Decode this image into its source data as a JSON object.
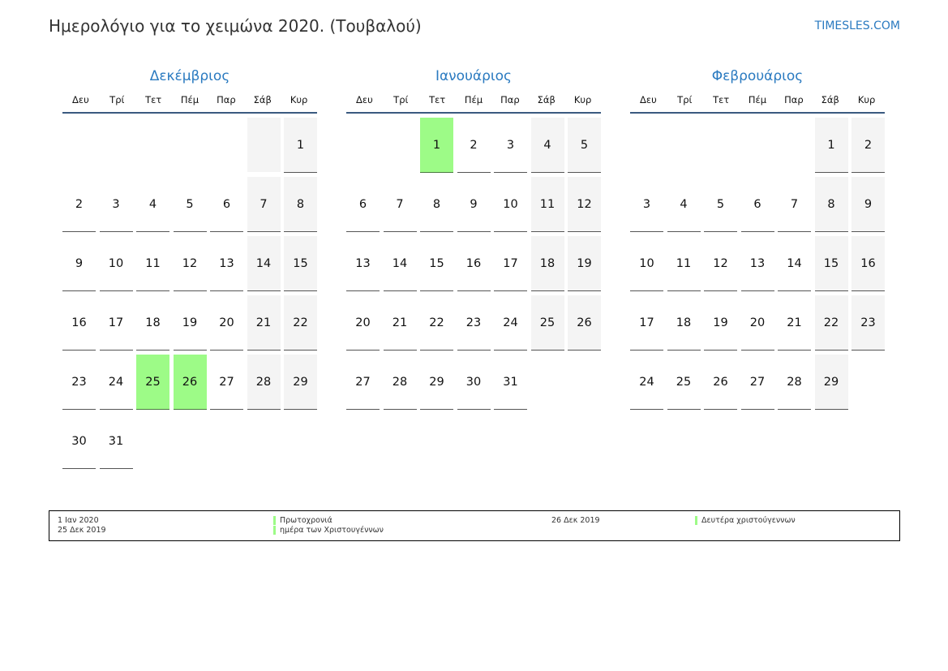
{
  "header": {
    "title": "Ημερολόγιο για το χειμώνα 2020. (Τουβαλού)",
    "site": "TIMESLES.COM"
  },
  "colors": {
    "accent": "#2a7ac0",
    "holiday": "#9dfb87",
    "weekend": "#f4f4f4"
  },
  "weekdays": [
    "Δευ",
    "Τρί",
    "Τετ",
    "Πέμ",
    "Παρ",
    "Σάβ",
    "Κυρ"
  ],
  "months": [
    {
      "name": "Δεκέμβριος",
      "leading_blanks": 6,
      "days": 31,
      "holidays": [
        25,
        26
      ]
    },
    {
      "name": "Ιανουάριος",
      "leading_blanks": 2,
      "days": 31,
      "holidays": [
        1
      ]
    },
    {
      "name": "Φεβρουάριος",
      "leading_blanks": 5,
      "days": 29,
      "holidays": []
    }
  ],
  "legend": {
    "col1": [
      "1 Ιαν 2020",
      "25 Δεκ 2019"
    ],
    "col2": [
      "Πρωτοχρονιά",
      "ημέρα των Χριστουγέννων"
    ],
    "col3": "26 Δεκ 2019",
    "col4": "Δευτέρα χριστούγεννων"
  }
}
